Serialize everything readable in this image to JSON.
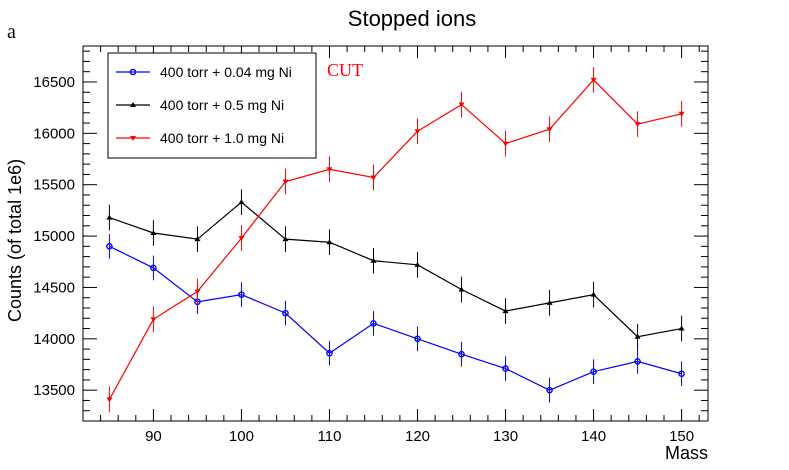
{
  "colors": {
    "blue": "#0000ff",
    "black": "#000000",
    "red": "#ff0000"
  },
  "chart_data": {
    "type": "line",
    "title": "Stopped ions",
    "panel_label": "a",
    "annotation": "CUT",
    "xlabel": "Mass",
    "ylabel": "Counts (of total 1e6)",
    "xlim": [
      82,
      153
    ],
    "ylim": [
      13200,
      16850
    ],
    "xticks": [
      90,
      100,
      110,
      120,
      130,
      140,
      150
    ],
    "yticks": [
      13500,
      14000,
      14500,
      15000,
      15500,
      16000,
      16500
    ],
    "x": [
      85,
      90,
      95,
      100,
      105,
      110,
      115,
      120,
      125,
      130,
      135,
      140,
      145,
      150
    ],
    "legend_position": "top-left",
    "series": [
      {
        "name": "400 torr + 0.04 mg Ni",
        "color": "#0000ff",
        "marker": "circle",
        "values": [
          14900,
          14690,
          14360,
          14430,
          14250,
          13860,
          14150,
          14000,
          13850,
          13710,
          13500,
          13680,
          13780,
          13660
        ],
        "errors": [
          120,
          120,
          120,
          120,
          120,
          120,
          120,
          120,
          120,
          120,
          120,
          120,
          120,
          120
        ]
      },
      {
        "name": "400 torr + 0.5 mg Ni",
        "color": "#000000",
        "marker": "triangle",
        "values": [
          15180,
          15030,
          14970,
          15330,
          14970,
          14940,
          14760,
          14720,
          14480,
          14270,
          14350,
          14430,
          14020,
          14100
        ],
        "errors": [
          125,
          125,
          125,
          125,
          125,
          125,
          125,
          125,
          125,
          125,
          125,
          125,
          125,
          125
        ]
      },
      {
        "name": "400 torr + 1.0 mg Ni",
        "color": "#ff0000",
        "marker": "triangle-down",
        "values": [
          13410,
          14190,
          14460,
          14980,
          15530,
          15650,
          15570,
          16020,
          16280,
          15900,
          16040,
          16520,
          16090,
          16190
        ],
        "errors": [
          125,
          125,
          125,
          125,
          125,
          125,
          125,
          125,
          125,
          125,
          125,
          125,
          125,
          125
        ]
      }
    ]
  }
}
